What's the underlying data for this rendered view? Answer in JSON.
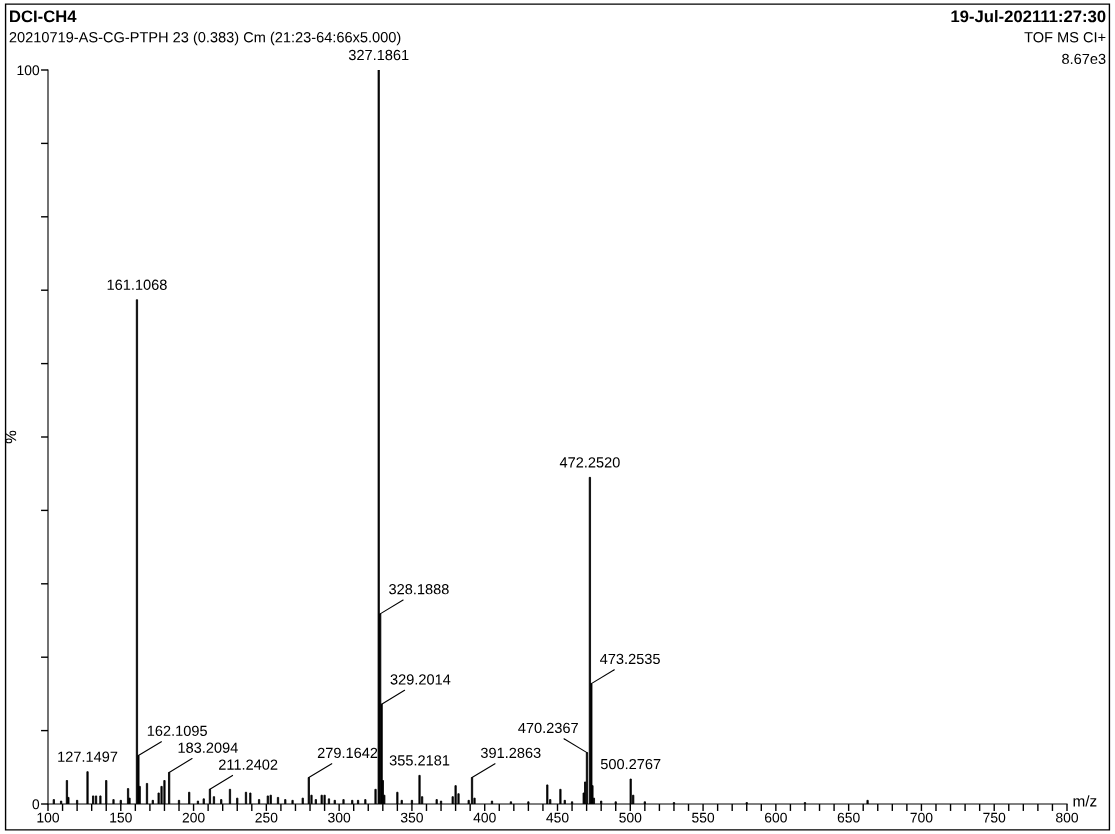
{
  "chart_data": {
    "type": "bar",
    "title": "DCI-CH4",
    "subtitle": "20210719-AS-CG-PTPH 23 (0.383) Cm (21:23-64:66x5.000)",
    "xlabel": "m/z",
    "ylabel": "%",
    "x": [
      104,
      109,
      113,
      114,
      120,
      127.1497,
      131,
      133,
      136,
      140,
      145,
      150,
      155,
      156,
      161.1068,
      162.1095,
      163,
      168,
      172,
      176,
      178,
      180,
      183.2094,
      190,
      197,
      203,
      207,
      211.2402,
      214,
      219,
      225,
      230,
      236,
      239,
      245,
      251,
      253,
      258,
      263,
      268,
      275,
      279.1642,
      281,
      284,
      288,
      290,
      293,
      297,
      303,
      309,
      313,
      318,
      325,
      326,
      327.1861,
      328.1888,
      329.2014,
      330,
      331,
      340,
      343,
      350,
      355.2181,
      357,
      367,
      370,
      378,
      380,
      382,
      389,
      391.2863,
      393,
      405,
      418,
      430,
      443,
      445,
      452,
      455,
      460,
      468,
      469,
      470.2367,
      472.252,
      473.2535,
      474,
      475,
      480,
      490,
      500.2767,
      502,
      510,
      530,
      580,
      620,
      663
    ],
    "values": [
      0.6,
      0.4,
      3.2,
      0.9,
      0.5,
      4.4,
      1.1,
      1.1,
      1.1,
      3.2,
      0.6,
      0.5,
      2.1,
      0.8,
      68.7,
      6.6,
      2.4,
      2.8,
      0.5,
      1.5,
      2.4,
      3.2,
      4.3,
      0.5,
      1.6,
      0.4,
      0.7,
      2.0,
      1.0,
      0.6,
      2.0,
      0.8,
      1.6,
      1.5,
      0.6,
      1.1,
      1.2,
      0.9,
      0.6,
      0.5,
      0.8,
      3.6,
      1.2,
      0.6,
      1.2,
      1.2,
      0.7,
      0.5,
      0.6,
      0.5,
      0.5,
      0.6,
      2.0,
      null,
      100,
      25.9,
      13.6,
      3.2,
      1.2,
      1.6,
      0.5,
      0.5,
      3.9,
      1.0,
      0.6,
      0.4,
      1.0,
      2.5,
      1.4,
      0.5,
      3.6,
      0.8,
      0.4,
      0.3,
      0.3,
      2.6,
      0.6,
      2.0,
      0.5,
      0.3,
      1.5,
      3.0,
      7.0,
      44.5,
      16.4,
      2.5,
      0.8,
      0.4,
      0.3,
      3.4,
      1.2,
      0.3,
      0.2,
      0.2,
      0.2,
      0.5
    ],
    "color": "#000000",
    "xlim": [
      100,
      800
    ],
    "xticks": [
      100,
      {
        "value": 110,
        "label": null
      },
      {
        "value": 120,
        "label": null
      },
      {
        "value": 130,
        "label": null
      },
      {
        "value": 140,
        "label": null
      },
      150,
      {
        "value": 160,
        "label": null
      },
      {
        "value": 170,
        "label": null
      },
      {
        "value": 180,
        "label": null
      },
      {
        "value": 190,
        "label": null
      },
      200,
      {
        "value": 210,
        "label": null
      },
      {
        "value": 220,
        "label": null
      },
      {
        "value": 230,
        "label": null
      },
      {
        "value": 240,
        "label": null
      },
      250,
      {
        "value": 260,
        "label": null
      },
      {
        "value": 270,
        "label": null
      },
      {
        "value": 280,
        "label": null
      },
      {
        "value": 290,
        "label": null
      },
      300,
      {
        "value": 310,
        "label": null
      },
      {
        "value": 320,
        "label": null
      },
      {
        "value": 330,
        "label": null
      },
      {
        "value": 340,
        "label": null
      },
      350,
      {
        "value": 360,
        "label": null
      },
      {
        "value": 370,
        "label": null
      },
      {
        "value": 380,
        "label": null
      },
      {
        "value": 390,
        "label": null
      },
      400,
      {
        "value": 410,
        "label": null
      },
      {
        "value": 420,
        "label": null
      },
      {
        "value": 430,
        "label": null
      },
      {
        "value": 440,
        "label": null
      },
      450,
      {
        "value": 460,
        "label": null
      },
      {
        "value": 470,
        "label": null
      },
      {
        "value": 480,
        "label": null
      },
      {
        "value": 490,
        "label": null
      },
      500,
      {
        "value": 510,
        "label": null
      },
      {
        "value": 520,
        "label": null
      },
      {
        "value": 530,
        "label": null
      },
      {
        "value": 540,
        "label": null
      },
      550,
      {
        "value": 560,
        "label": null
      },
      {
        "value": 570,
        "label": null
      },
      {
        "value": 580,
        "label": null
      },
      {
        "value": 590,
        "label": null
      },
      600,
      {
        "value": 610,
        "label": null
      },
      {
        "value": 620,
        "label": null
      },
      {
        "value": 630,
        "label": null
      },
      {
        "value": 640,
        "label": null
      },
      650,
      {
        "value": 660,
        "label": null
      },
      {
        "value": 670,
        "label": null
      },
      {
        "value": 680,
        "label": null
      },
      {
        "value": 690,
        "label": null
      },
      700,
      {
        "value": 710,
        "label": null
      },
      {
        "value": 720,
        "label": null
      },
      {
        "value": 730,
        "label": null
      },
      {
        "value": 740,
        "label": null
      },
      750,
      {
        "value": 760,
        "label": null
      },
      {
        "value": 770,
        "label": null
      },
      {
        "value": 780,
        "label": null
      },
      {
        "value": 790,
        "label": null
      },
      800
    ],
    "ylim": [
      0,
      100
    ],
    "yticks": [
      0,
      {
        "value": 10,
        "label": null
      },
      {
        "value": 20,
        "label": null
      },
      {
        "value": 30,
        "label": null
      },
      {
        "value": 40,
        "label": null
      },
      {
        "value": 50,
        "label": null
      },
      {
        "value": 60,
        "label": null
      },
      {
        "value": 70,
        "label": null
      },
      {
        "value": 80,
        "label": null
      },
      {
        "value": 90,
        "label": null
      },
      100
    ],
    "grid": false,
    "legend": false,
    "annotations": [
      "19-Jul-202111:27:30",
      "TOF MS CI+",
      "8.67e3",
      {
        "text": "127.1497",
        "x": 127.1497,
        "y": 4.4
      },
      {
        "text": "161.1068",
        "x": 161.1068,
        "y": 68.7
      },
      {
        "text": "162.1095",
        "x": 162.1095,
        "y": 6.6
      },
      {
        "text": "183.2094",
        "x": 183.2094,
        "y": 4.3
      },
      {
        "text": "211.2402",
        "x": 211.2402,
        "y": 2.0
      },
      {
        "text": "279.1642",
        "x": 279.1642,
        "y": 3.6
      },
      {
        "text": "327.1861",
        "x": 327.1861,
        "y": 100
      },
      {
        "text": "328.1888",
        "x": 328.1888,
        "y": 25.9
      },
      {
        "text": "329.2014",
        "x": 329.2014,
        "y": 13.6
      },
      {
        "text": "355.2181",
        "x": 355.2181,
        "y": 3.9
      },
      {
        "text": "391.2863",
        "x": 391.2863,
        "y": 3.6
      },
      {
        "text": "470.2367",
        "x": 470.2367,
        "y": 7.0
      },
      {
        "text": "472.2520",
        "x": 472.252,
        "y": 44.5
      },
      {
        "text": "473.2535",
        "x": 473.2535,
        "y": 16.4
      },
      {
        "text": "500.2767",
        "x": 500.2767,
        "y": 3.4
      }
    ]
  }
}
